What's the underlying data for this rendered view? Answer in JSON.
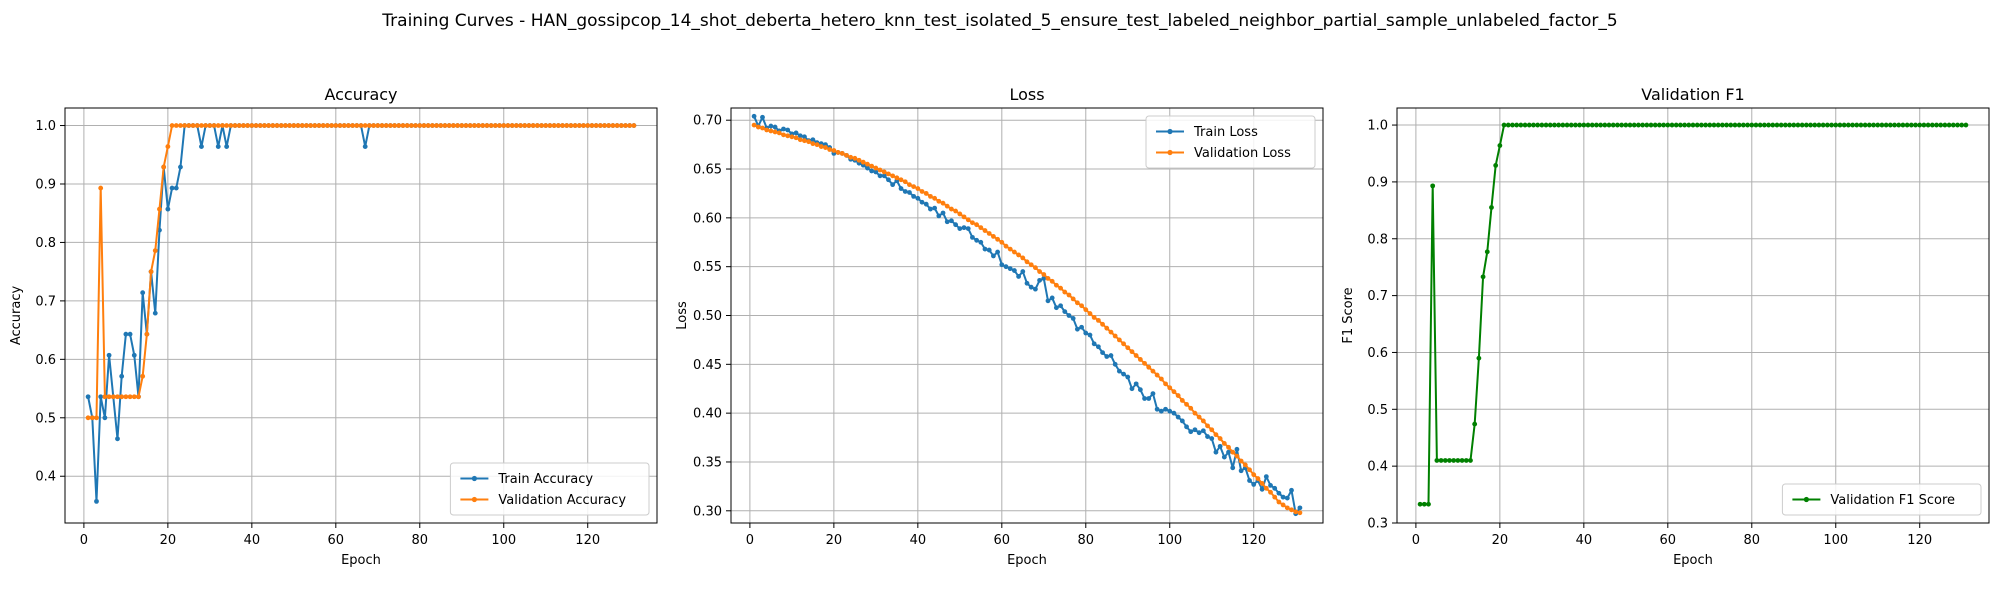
{
  "figure": {
    "suptitle": "Training Curves - HAN_gossipcop_14_shot_deberta_hetero_knn_test_isolated_5_ensure_test_labeled_neighbor_partial_sample_unlabeled_factor_5"
  },
  "chart_data": [
    {
      "type": "line",
      "title": "Accuracy",
      "xlabel": "Epoch",
      "ylabel": "Accuracy",
      "xlim": [
        -4.5,
        136.5
      ],
      "ylim": [
        0.32,
        1.03
      ],
      "xticks": [
        0,
        20,
        40,
        60,
        80,
        100,
        120
      ],
      "yticks": [
        0.4,
        0.5,
        0.6,
        0.7,
        0.8,
        0.9,
        1.0
      ],
      "ytick_labels": [
        "0.4",
        "0.5",
        "0.6",
        "0.7",
        "0.8",
        "0.9",
        "1.0"
      ],
      "grid": true,
      "legend_position": "lower-right",
      "series": [
        {
          "name": "Train Accuracy",
          "color": "#1f77b4",
          "x_start": 1,
          "values": [
            0.536,
            0.5,
            0.357,
            0.536,
            0.5,
            0.607,
            0.536,
            0.464,
            0.571,
            0.643,
            0.643,
            0.607,
            0.536,
            0.714,
            0.643,
            0.75,
            0.679,
            0.821,
            0.929,
            0.857,
            0.893,
            0.893,
            0.929,
            1.0,
            1.0,
            1.0,
            1.0,
            0.964,
            1.0,
            1.0,
            1.0,
            0.964,
            1.0,
            0.964,
            1.0,
            1.0,
            1.0,
            1.0,
            1.0,
            1.0,
            1.0,
            1.0,
            1.0,
            1.0,
            1.0,
            1.0,
            1.0,
            1.0,
            1.0,
            1.0,
            1.0,
            1.0,
            1.0,
            1.0,
            1.0,
            1.0,
            1.0,
            1.0,
            1.0,
            1.0,
            1.0,
            1.0,
            1.0,
            1.0,
            1.0,
            1.0,
            0.964,
            1.0,
            1.0,
            1.0,
            1.0,
            1.0,
            1.0,
            1.0,
            1.0,
            1.0,
            1.0,
            1.0,
            1.0,
            1.0,
            1.0,
            1.0,
            1.0,
            1.0,
            1.0,
            1.0,
            1.0,
            1.0,
            1.0,
            1.0,
            1.0,
            1.0,
            1.0,
            1.0,
            1.0,
            1.0,
            1.0,
            1.0,
            1.0,
            1.0,
            1.0,
            1.0,
            1.0,
            1.0,
            1.0,
            1.0,
            1.0,
            1.0,
            1.0,
            1.0,
            1.0,
            1.0,
            1.0,
            1.0,
            1.0,
            1.0,
            1.0,
            1.0,
            1.0,
            1.0,
            1.0,
            1.0,
            1.0,
            1.0,
            1.0,
            1.0,
            1.0,
            1.0,
            1.0,
            1.0,
            1.0
          ]
        },
        {
          "name": "Validation Accuracy",
          "color": "#ff7f0e",
          "x_start": 1,
          "values": [
            0.5,
            0.5,
            0.5,
            0.893,
            0.536,
            0.536,
            0.536,
            0.536,
            0.536,
            0.536,
            0.536,
            0.536,
            0.536,
            0.571,
            0.643,
            0.75,
            0.786,
            0.857,
            0.929,
            0.964,
            1.0,
            1.0,
            1.0,
            1.0,
            1.0,
            1.0,
            1.0,
            1.0,
            1.0,
            1.0,
            1.0,
            1.0,
            1.0,
            1.0,
            1.0,
            1.0,
            1.0,
            1.0,
            1.0,
            1.0,
            1.0,
            1.0,
            1.0,
            1.0,
            1.0,
            1.0,
            1.0,
            1.0,
            1.0,
            1.0,
            1.0,
            1.0,
            1.0,
            1.0,
            1.0,
            1.0,
            1.0,
            1.0,
            1.0,
            1.0,
            1.0,
            1.0,
            1.0,
            1.0,
            1.0,
            1.0,
            1.0,
            1.0,
            1.0,
            1.0,
            1.0,
            1.0,
            1.0,
            1.0,
            1.0,
            1.0,
            1.0,
            1.0,
            1.0,
            1.0,
            1.0,
            1.0,
            1.0,
            1.0,
            1.0,
            1.0,
            1.0,
            1.0,
            1.0,
            1.0,
            1.0,
            1.0,
            1.0,
            1.0,
            1.0,
            1.0,
            1.0,
            1.0,
            1.0,
            1.0,
            1.0,
            1.0,
            1.0,
            1.0,
            1.0,
            1.0,
            1.0,
            1.0,
            1.0,
            1.0,
            1.0,
            1.0,
            1.0,
            1.0,
            1.0,
            1.0,
            1.0,
            1.0,
            1.0,
            1.0,
            1.0,
            1.0,
            1.0,
            1.0,
            1.0,
            1.0,
            1.0,
            1.0,
            1.0,
            1.0,
            1.0
          ]
        }
      ]
    },
    {
      "type": "line",
      "title": "Loss",
      "xlabel": "Epoch",
      "ylabel": "Loss",
      "xlim": [
        -4.5,
        136.5
      ],
      "ylim": [
        0.2875,
        0.7125
      ],
      "xticks": [
        0,
        20,
        40,
        60,
        80,
        100,
        120
      ],
      "yticks": [
        0.3,
        0.35,
        0.4,
        0.45,
        0.5,
        0.55,
        0.6,
        0.65,
        0.7
      ],
      "ytick_labels": [
        "0.30",
        "0.35",
        "0.40",
        "0.45",
        "0.50",
        "0.55",
        "0.60",
        "0.65",
        "0.70"
      ],
      "grid": true,
      "legend_position": "upper-right",
      "series": [
        {
          "name": "Train Loss",
          "color": "#1f77b4",
          "x_start": 1,
          "values": [
            0.704,
            0.694,
            0.703,
            0.692,
            0.694,
            0.693,
            0.689,
            0.691,
            0.69,
            0.686,
            0.687,
            0.684,
            0.683,
            0.679,
            0.68,
            0.677,
            0.676,
            0.675,
            0.672,
            0.666,
            0.667,
            0.666,
            0.664,
            0.66,
            0.659,
            0.656,
            0.654,
            0.651,
            0.648,
            0.647,
            0.643,
            0.643,
            0.639,
            0.634,
            0.638,
            0.63,
            0.627,
            0.626,
            0.622,
            0.62,
            0.616,
            0.614,
            0.609,
            0.61,
            0.602,
            0.605,
            0.596,
            0.597,
            0.593,
            0.589,
            0.59,
            0.589,
            0.58,
            0.577,
            0.575,
            0.568,
            0.567,
            0.561,
            0.565,
            0.552,
            0.55,
            0.548,
            0.546,
            0.54,
            0.545,
            0.533,
            0.529,
            0.527,
            0.536,
            0.538,
            0.515,
            0.518,
            0.508,
            0.51,
            0.504,
            0.5,
            0.497,
            0.486,
            0.488,
            0.482,
            0.48,
            0.471,
            0.468,
            0.462,
            0.458,
            0.459,
            0.45,
            0.443,
            0.44,
            0.437,
            0.425,
            0.43,
            0.424,
            0.415,
            0.415,
            0.42,
            0.404,
            0.402,
            0.404,
            0.402,
            0.4,
            0.396,
            0.392,
            0.386,
            0.381,
            0.383,
            0.38,
            0.382,
            0.376,
            0.374,
            0.36,
            0.366,
            0.355,
            0.36,
            0.344,
            0.363,
            0.341,
            0.344,
            0.331,
            0.327,
            0.331,
            0.322,
            0.335,
            0.326,
            0.323,
            0.318,
            0.314,
            0.313,
            0.321,
            0.297,
            0.303
          ]
        },
        {
          "name": "Validation Loss",
          "color": "#ff7f0e",
          "x_start": 1,
          "values": [
            0.695,
            0.693,
            0.692,
            0.69,
            0.689,
            0.688,
            0.687,
            0.685,
            0.684,
            0.683,
            0.682,
            0.68,
            0.679,
            0.678,
            0.676,
            0.675,
            0.673,
            0.672,
            0.67,
            0.669,
            0.667,
            0.666,
            0.664,
            0.662,
            0.661,
            0.659,
            0.657,
            0.655,
            0.653,
            0.651,
            0.649,
            0.647,
            0.645,
            0.643,
            0.641,
            0.639,
            0.637,
            0.634,
            0.632,
            0.63,
            0.627,
            0.625,
            0.622,
            0.62,
            0.617,
            0.615,
            0.612,
            0.609,
            0.607,
            0.604,
            0.601,
            0.598,
            0.595,
            0.593,
            0.59,
            0.587,
            0.584,
            0.581,
            0.578,
            0.575,
            0.571,
            0.568,
            0.565,
            0.562,
            0.559,
            0.555,
            0.552,
            0.549,
            0.545,
            0.542,
            0.538,
            0.535,
            0.531,
            0.528,
            0.524,
            0.521,
            0.517,
            0.513,
            0.51,
            0.506,
            0.502,
            0.498,
            0.495,
            0.491,
            0.487,
            0.483,
            0.479,
            0.475,
            0.471,
            0.467,
            0.463,
            0.459,
            0.455,
            0.451,
            0.447,
            0.443,
            0.439,
            0.435,
            0.43,
            0.426,
            0.422,
            0.418,
            0.413,
            0.409,
            0.405,
            0.4,
            0.396,
            0.392,
            0.387,
            0.383,
            0.378,
            0.374,
            0.369,
            0.365,
            0.36,
            0.356,
            0.351,
            0.347,
            0.342,
            0.337,
            0.333,
            0.328,
            0.323,
            0.319,
            0.314,
            0.309,
            0.306,
            0.303,
            0.301,
            0.299,
            0.298
          ]
        }
      ]
    },
    {
      "type": "line",
      "title": "Validation F1",
      "xlabel": "Epoch",
      "ylabel": "F1 Score",
      "xlim": [
        -4.5,
        136.5
      ],
      "ylim": [
        0.3,
        1.03
      ],
      "xticks": [
        0,
        20,
        40,
        60,
        80,
        100,
        120
      ],
      "yticks": [
        0.3,
        0.4,
        0.5,
        0.6,
        0.7,
        0.8,
        0.9,
        1.0
      ],
      "ytick_labels": [
        "0.3",
        "0.4",
        "0.5",
        "0.6",
        "0.7",
        "0.8",
        "0.9",
        "1.0"
      ],
      "grid": true,
      "legend_position": "lower-right",
      "series": [
        {
          "name": "Validation F1 Score",
          "color": "#008000",
          "x_start": 1,
          "values": [
            0.333,
            0.333,
            0.333,
            0.893,
            0.41,
            0.41,
            0.41,
            0.41,
            0.41,
            0.41,
            0.41,
            0.41,
            0.41,
            0.474,
            0.59,
            0.733,
            0.777,
            0.855,
            0.929,
            0.964,
            1.0,
            1.0,
            1.0,
            1.0,
            1.0,
            1.0,
            1.0,
            1.0,
            1.0,
            1.0,
            1.0,
            1.0,
            1.0,
            1.0,
            1.0,
            1.0,
            1.0,
            1.0,
            1.0,
            1.0,
            1.0,
            1.0,
            1.0,
            1.0,
            1.0,
            1.0,
            1.0,
            1.0,
            1.0,
            1.0,
            1.0,
            1.0,
            1.0,
            1.0,
            1.0,
            1.0,
            1.0,
            1.0,
            1.0,
            1.0,
            1.0,
            1.0,
            1.0,
            1.0,
            1.0,
            1.0,
            1.0,
            1.0,
            1.0,
            1.0,
            1.0,
            1.0,
            1.0,
            1.0,
            1.0,
            1.0,
            1.0,
            1.0,
            1.0,
            1.0,
            1.0,
            1.0,
            1.0,
            1.0,
            1.0,
            1.0,
            1.0,
            1.0,
            1.0,
            1.0,
            1.0,
            1.0,
            1.0,
            1.0,
            1.0,
            1.0,
            1.0,
            1.0,
            1.0,
            1.0,
            1.0,
            1.0,
            1.0,
            1.0,
            1.0,
            1.0,
            1.0,
            1.0,
            1.0,
            1.0,
            1.0,
            1.0,
            1.0,
            1.0,
            1.0,
            1.0,
            1.0,
            1.0,
            1.0,
            1.0,
            1.0,
            1.0,
            1.0,
            1.0,
            1.0,
            1.0,
            1.0,
            1.0,
            1.0,
            1.0,
            1.0
          ]
        }
      ]
    }
  ]
}
